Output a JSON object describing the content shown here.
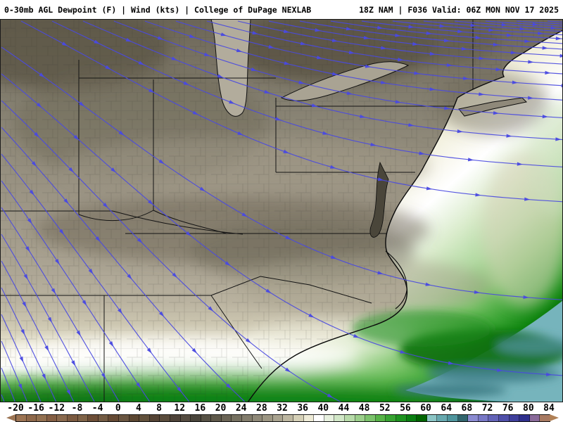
{
  "header": {
    "left": "0-30mb AGL Dewpoint (F) | Wind (kts) | College of DuPage NEXLAB",
    "right": "18Z NAM | F036 Valid: 06Z MON NOV 17 2025"
  },
  "map": {
    "description": "Filled dewpoint analysis over Midwest / Mid-Atlantic / Southeast US with wind streamlines",
    "wind_color": "#4a4ae0",
    "county_line_color": "#30302a",
    "state_line_color": "#141414",
    "coast_line_color": "#0a0a0a",
    "palette": {
      "dry_northwest": "#6b6557",
      "midland_taupe": "#938c7c",
      "coastal_tan": "#b3ac9a",
      "moist_white_band": "#ffffff",
      "gulf_green": "#2ba02b",
      "offshore_dark_green": "#006400",
      "offshore_teal": "#76b4bc",
      "lake_fill": "#b2ac9c"
    }
  },
  "colorbar": {
    "title": "Dewpoint (F)",
    "range": [
      -20,
      84
    ],
    "unit_step_per_cell": 2,
    "ticks": [
      "-20",
      "-16",
      "-12",
      "-8",
      "-4",
      "0",
      "4",
      "8",
      "12",
      "16",
      "20",
      "24",
      "28",
      "32",
      "36",
      "40",
      "44",
      "48",
      "52",
      "56",
      "60",
      "64",
      "68",
      "72",
      "76",
      "80",
      "84"
    ],
    "left_arrow_color": "#9c7453",
    "right_arrow_color": "#b08056",
    "colors": [
      "#9c7453",
      "#8e684a",
      "#927050",
      "#845e43",
      "#8a6a4e",
      "#7b5a40",
      "#7f6347",
      "#6d4e37",
      "#735b43",
      "#644933",
      "#695540",
      "#5b4631",
      "#61503b",
      "#544334",
      "#594b3b",
      "#4e4339",
      "#544b40",
      "#49443b",
      "#565145",
      "#5e584a",
      "#6a6455",
      "#757060",
      "#827c6c",
      "#8f8978",
      "#9c9683",
      "#a9a390",
      "#bdb7a1",
      "#d5d0b7",
      "#eeebd7",
      "#ffffff",
      "#e7f1df",
      "#d1e7c7",
      "#b7dba9",
      "#9bcf8b",
      "#7bc36b",
      "#57b347",
      "#37a331",
      "#1d931f",
      "#0a7f11",
      "#006400",
      "#8bc5c5",
      "#67a9af",
      "#4e959d",
      "#31656d",
      "#8b8bd1",
      "#7777c5",
      "#6363b7",
      "#4f4fa9",
      "#3f3f9b",
      "#2f2f8d",
      "#896999",
      "#a77961"
    ]
  }
}
